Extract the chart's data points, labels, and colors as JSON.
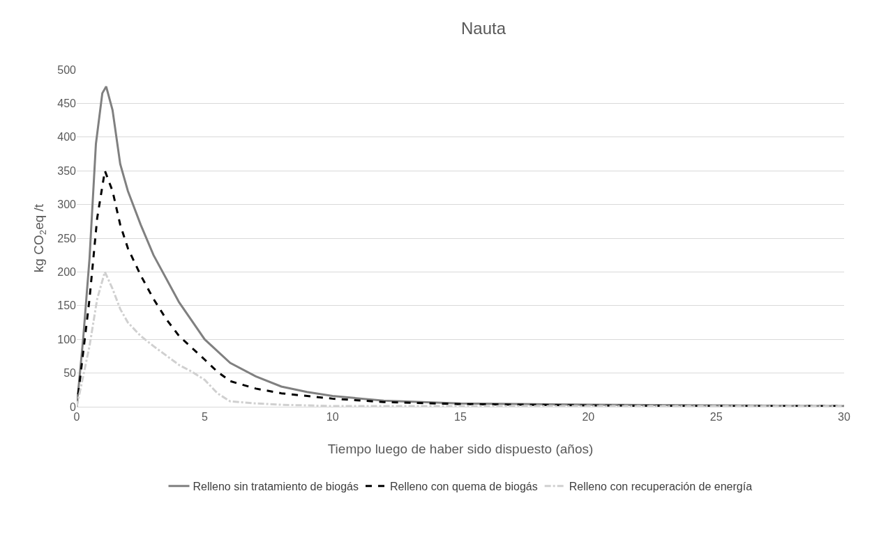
{
  "chart_data": {
    "type": "line",
    "title": "Nauta",
    "xlabel": "Tiempo luego de haber sido dispuesto (años)",
    "ylabel": "kg CO$_{2}$eq /t",
    "xlim": [
      0,
      30
    ],
    "xticks": [
      0,
      5,
      10,
      15,
      20,
      25,
      30
    ],
    "ylim": [
      0,
      500
    ],
    "yticks": [
      0,
      50,
      100,
      150,
      200,
      250,
      300,
      350,
      400,
      450,
      500
    ],
    "grid": "y",
    "legend": "bottom",
    "marker": "none",
    "series": [
      {
        "name": "Relleno sin tratamiento de biogás",
        "color": "#808080",
        "line_style": "solid",
        "x": [
          0,
          0.25,
          0.5,
          0.75,
          1.0,
          1.15,
          1.4,
          1.7,
          2.0,
          2.5,
          3,
          4,
          5,
          6,
          7,
          8,
          9,
          10,
          12,
          15,
          20,
          25,
          30
        ],
        "values": [
          0,
          100,
          220,
          390,
          465,
          475,
          440,
          360,
          320,
          270,
          225,
          155,
          100,
          65,
          45,
          30,
          22,
          16,
          9,
          5,
          3,
          2,
          1
        ]
      },
      {
        "name": "Relleno con quema de biogás",
        "color": "#000000",
        "line_style": "dashed",
        "x": [
          0,
          0.5,
          0.8,
          1.1,
          1.4,
          1.7,
          2,
          2.5,
          3,
          3.5,
          4,
          5,
          5.5,
          6,
          7,
          8,
          10,
          12,
          15,
          20,
          25,
          30
        ],
        "values": [
          0,
          160,
          280,
          350,
          320,
          270,
          235,
          195,
          160,
          130,
          105,
          70,
          52,
          38,
          27,
          20,
          12,
          7,
          4,
          2,
          1,
          1
        ]
      },
      {
        "name": "Relleno con recuperación de energía",
        "color": "#d0d0d0",
        "line_style": "dashdot",
        "x": [
          0,
          0.5,
          0.8,
          1.1,
          1.4,
          1.7,
          2,
          2.5,
          3,
          4,
          4.5,
          5,
          5.5,
          6,
          7,
          8,
          10,
          15,
          20,
          30
        ],
        "values": [
          0,
          90,
          160,
          200,
          175,
          145,
          125,
          105,
          90,
          62,
          52,
          40,
          20,
          8,
          5,
          3,
          1,
          1,
          1,
          1
        ]
      }
    ]
  }
}
